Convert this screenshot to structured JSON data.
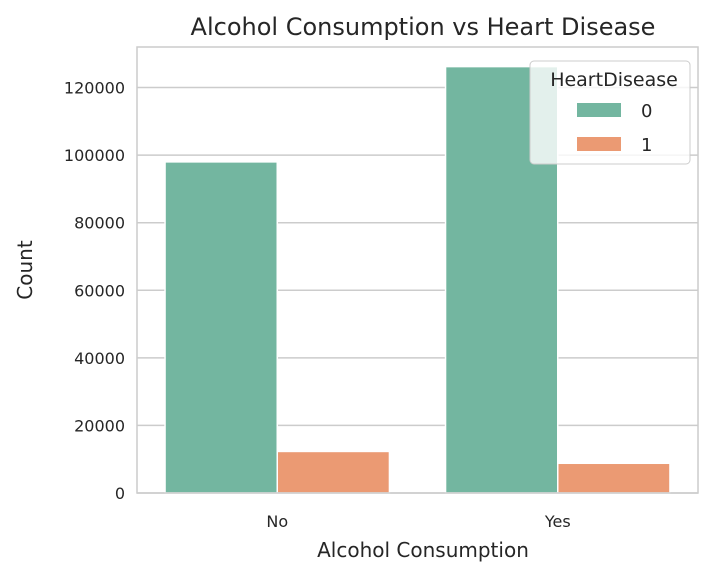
{
  "chart_data": {
    "type": "bar",
    "title": "Alcohol Consumption vs Heart Disease",
    "xlabel": "Alcohol Consumption",
    "ylabel": "Count",
    "categories": [
      "No",
      "Yes"
    ],
    "series": [
      {
        "name": "0",
        "values": [
          98000,
          126200
        ],
        "color": "#73b6a0"
      },
      {
        "name": "1",
        "values": [
          12300,
          8800
        ],
        "color": "#eb9a73"
      }
    ],
    "ylim": [
      0,
      132000
    ],
    "yticks": [
      0,
      20000,
      40000,
      60000,
      80000,
      100000,
      120000
    ],
    "legend": {
      "title": "HeartDisease",
      "position": "top-right"
    },
    "grid": "horizontal",
    "background": "#ffffff",
    "axes_color": "#cccccc"
  }
}
